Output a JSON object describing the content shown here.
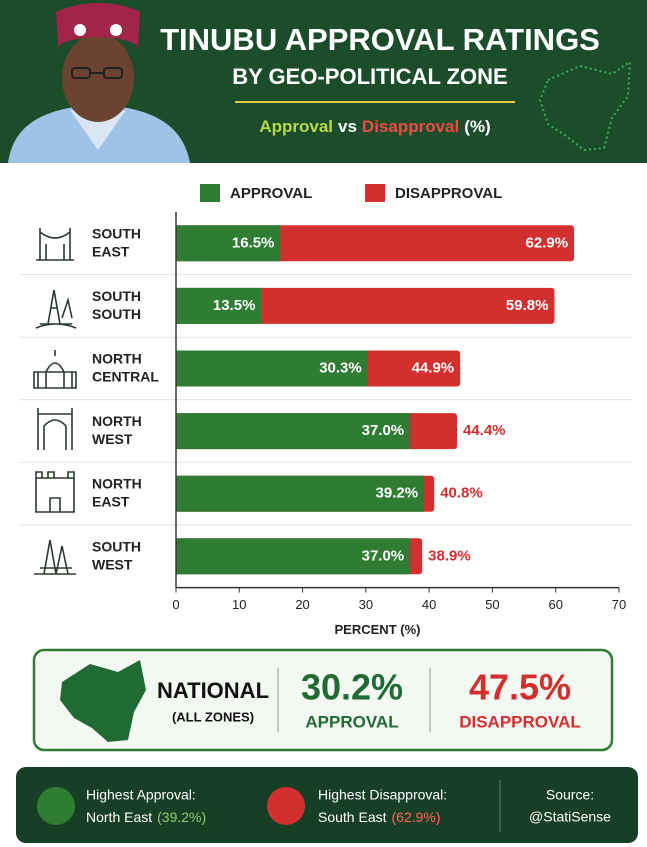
{
  "header": {
    "title_line1": "TINUBU APPROVAL RATINGS",
    "title_line2": "BY GEO-POLITICAL ZONE",
    "subtitle": {
      "approval": "Approval",
      "vs": "vs",
      "disapproval": "Disapproval",
      "unit": "(%)"
    }
  },
  "chart_data": {
    "type": "bar",
    "orientation": "horizontal",
    "categories": [
      "SOUTH EAST",
      "SOUTH SOUTH",
      "NORTH CENTRAL",
      "NORTH WEST",
      "NORTH EAST",
      "SOUTH WEST"
    ],
    "series": [
      {
        "name": "APPROVAL",
        "color": "#2e7d32",
        "values": [
          16.5,
          13.5,
          30.3,
          37.0,
          39.2,
          37.0
        ],
        "value_labels": [
          "16.5%",
          "13.5%",
          "30.3%",
          "37.0%",
          "39.2%",
          "37.0%"
        ]
      },
      {
        "name": "DISAPPROVAL",
        "color": "#d32f2f",
        "values": [
          62.9,
          59.8,
          44.9,
          44.4,
          40.8,
          38.9
        ],
        "value_labels": [
          "62.9%",
          "59.8%",
          "44.9%",
          "44.4%",
          "40.8%",
          "38.9%"
        ]
      }
    ],
    "xlim": [
      0,
      70
    ],
    "xticks": [
      0,
      10,
      20,
      30,
      40,
      50,
      60,
      70
    ],
    "xlabel": "PERCENT (%)",
    "legend": "top"
  },
  "national": {
    "label": "NATIONAL",
    "sublabel": "(ALL ZONES)",
    "approval": {
      "value": "30.2%",
      "label": "APPROVAL"
    },
    "disapproval": {
      "value": "47.5%",
      "label": "DISAPPROVAL"
    }
  },
  "footer": {
    "highest_approval": {
      "label": "Highest Approval:",
      "zone": "North East",
      "value": "(39.2%)"
    },
    "highest_disapproval": {
      "label": "Highest Disapproval:",
      "zone": "South East",
      "value": "(62.9%)"
    },
    "source": {
      "label": "Source:",
      "handle": "@StatiSense"
    }
  }
}
